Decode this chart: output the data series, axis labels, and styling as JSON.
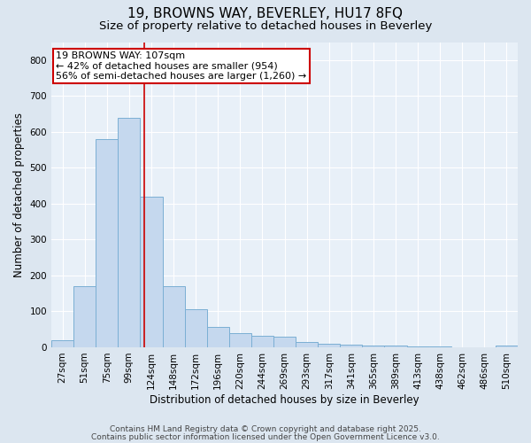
{
  "title1": "19, BROWNS WAY, BEVERLEY, HU17 8FQ",
  "title2": "Size of property relative to detached houses in Beverley",
  "xlabel": "Distribution of detached houses by size in Beverley",
  "ylabel": "Number of detached properties",
  "bin_labels": [
    "27sqm",
    "51sqm",
    "75sqm",
    "99sqm",
    "124sqm",
    "148sqm",
    "172sqm",
    "196sqm",
    "220sqm",
    "244sqm",
    "269sqm",
    "293sqm",
    "317sqm",
    "341sqm",
    "365sqm",
    "389sqm",
    "413sqm",
    "438sqm",
    "462sqm",
    "486sqm",
    "510sqm"
  ],
  "bar_values": [
    20,
    170,
    580,
    640,
    420,
    170,
    105,
    57,
    40,
    33,
    30,
    15,
    10,
    8,
    6,
    5,
    3,
    2,
    1,
    1,
    6
  ],
  "bar_color": "#c5d8ee",
  "bar_edge_color": "#7bafd4",
  "red_line_x": 3.67,
  "red_line_color": "#cc0000",
  "annotation_text": "19 BROWNS WAY: 107sqm\n← 42% of detached houses are smaller (954)\n56% of semi-detached houses are larger (1,260) →",
  "annotation_box_color": "#ffffff",
  "annotation_edge_color": "#cc0000",
  "ylim": [
    0,
    850
  ],
  "yticks": [
    0,
    100,
    200,
    300,
    400,
    500,
    600,
    700,
    800
  ],
  "footer1": "Contains HM Land Registry data © Crown copyright and database right 2025.",
  "footer2": "Contains public sector information licensed under the Open Government Licence v3.0.",
  "bg_color": "#dce6f0",
  "plot_bg_color": "#e8f0f8",
  "title1_fontsize": 11,
  "title2_fontsize": 9.5,
  "axis_label_fontsize": 8.5,
  "tick_fontsize": 7.5,
  "footer_fontsize": 6.5,
  "annot_fontsize": 8
}
